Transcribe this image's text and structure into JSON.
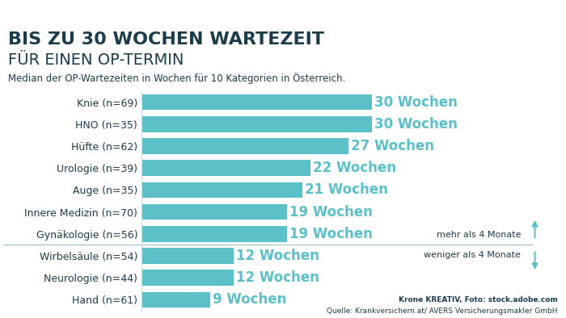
{
  "chart_data": {
    "type": "bar",
    "orientation": "horizontal",
    "title": "BIS ZU 30 WOCHEN WARTEZEIT",
    "subtitle": "FÜR EINEN OP-TERMIN",
    "annotations": [
      "Median der OP-Wartezeiten in Wochen für 10 Kategorien in Österreich.",
      "mehr als 4 Monate",
      "weniger als 4 Monate",
      "Krone KREATIV, Foto: stock.adobe.com",
      "Quelle: Krankversichern.at/ AVERS Versicherungsmakler GmbH"
    ],
    "categories": [
      "Knie (n=69)",
      "HNO (n=35)",
      "Hüfte (n=62)",
      "Urologie (n=39)",
      "Auge (n=35)",
      "Innere Medizin (n=70)",
      "Gynäkologie (n=56)",
      "Wirbelsäule (n=54)",
      "Neurologie (n=44)",
      "Hand (n=61)"
    ],
    "values": [
      30,
      30,
      27,
      22,
      21,
      19,
      19,
      12,
      12,
      9
    ],
    "value_labels": [
      "30 Wochen",
      "30 Wochen",
      "27 Wochen",
      "22 Wochen",
      "21 Wochen",
      "19 Wochen",
      "19 Wochen",
      "12 Wochen",
      "12 Wochen",
      "9 Wochen"
    ],
    "data_labels": true,
    "color": "#5bc0c8",
    "xlim": [
      0,
      30
    ],
    "xticks": [],
    "tick_labels": "y",
    "grid": false
  }
}
